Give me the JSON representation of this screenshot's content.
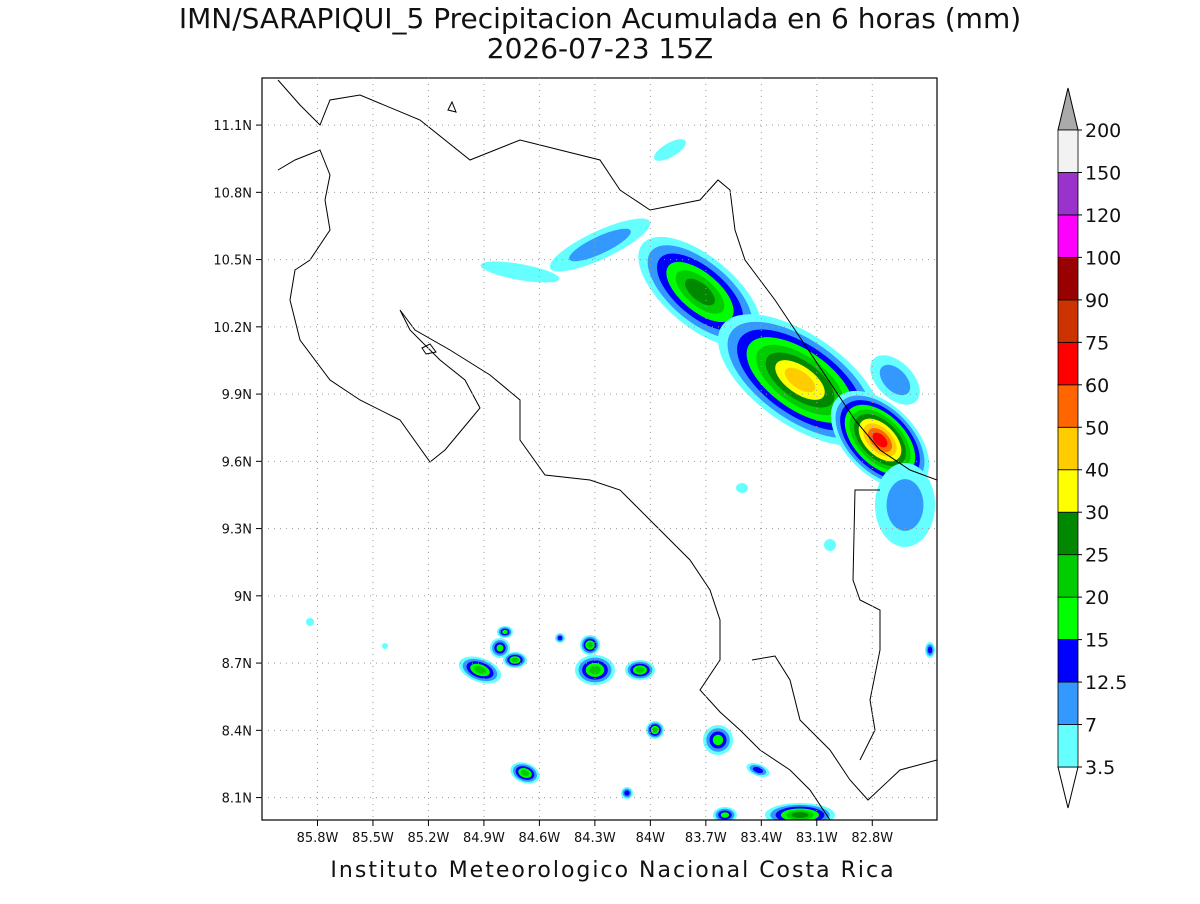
{
  "title": "IMN/SARAPIQUI_5 Precipitacion Acumulada en 6 horas (mm)",
  "subtitle": "2026-07-23 15Z",
  "map": {
    "lon_range": [
      -86.1,
      -82.45
    ],
    "lat_range": [
      8.0,
      11.31
    ],
    "lon_ticks": [
      {
        "value": -85.8,
        "label": "85.8W"
      },
      {
        "value": -85.5,
        "label": "85.5W"
      },
      {
        "value": -85.2,
        "label": "85.2W"
      },
      {
        "value": -84.9,
        "label": "84.9W"
      },
      {
        "value": -84.6,
        "label": "84.6W"
      },
      {
        "value": -84.3,
        "label": "84.3W"
      },
      {
        "value": -84.0,
        "label": "84W"
      },
      {
        "value": -83.7,
        "label": "83.7W"
      },
      {
        "value": -83.4,
        "label": "83.4W"
      },
      {
        "value": -83.1,
        "label": "83.1W"
      },
      {
        "value": -82.8,
        "label": "82.8W"
      }
    ],
    "lat_ticks": [
      {
        "value": 11.1,
        "label": "11.1N"
      },
      {
        "value": 10.8,
        "label": "10.8N"
      },
      {
        "value": 10.5,
        "label": "10.5N"
      },
      {
        "value": 10.2,
        "label": "10.2N"
      },
      {
        "value": 9.9,
        "label": "9.9N"
      },
      {
        "value": 9.6,
        "label": "9.6N"
      },
      {
        "value": 9.3,
        "label": "9.3N"
      },
      {
        "value": 9.0,
        "label": "9N"
      },
      {
        "value": 8.7,
        "label": "8.7N"
      },
      {
        "value": 8.4,
        "label": "8.4N"
      },
      {
        "value": 8.1,
        "label": "8.1N"
      }
    ]
  },
  "colorbar": {
    "levels": [
      3.5,
      7,
      12.5,
      15,
      20,
      25,
      30,
      40,
      50,
      60,
      75,
      90,
      100,
      120,
      150,
      200
    ],
    "colors": [
      "#ffffff",
      "#66ffff",
      "#3399ff",
      "#0000ff",
      "#00ff00",
      "#00cc00",
      "#008800",
      "#ffff00",
      "#ffcc00",
      "#ff6600",
      "#ff0000",
      "#cc3300",
      "#990000",
      "#ff00ff",
      "#9933cc",
      "#f2f2f2",
      "#aaaaaa"
    ]
  },
  "footer": "Instituto Meteorologico Nacional Costa Rica"
}
